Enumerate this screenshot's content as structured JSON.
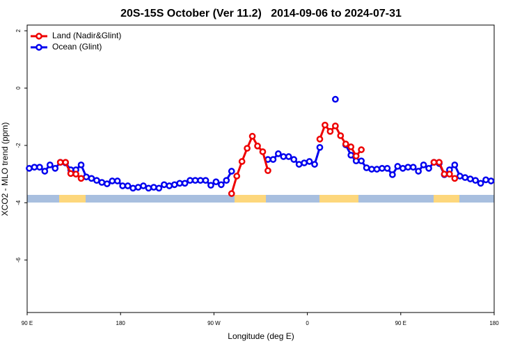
{
  "chart_data": {
    "type": "line",
    "title": "20S-15S October (Ver 11.2)   2014-09-06 to 2024-07-31",
    "x_label": "Longitude (deg E)",
    "y_label": "XCO2 - MLO trend (ppm)",
    "xlim": [
      90,
      540
    ],
    "ylim": [
      -7.83,
      2.2
    ],
    "xticks": [
      {
        "value": 90,
        "label": "90 E"
      },
      180,
      {
        "value": 270,
        "label": "90 W"
      },
      {
        "value": 360,
        "label": "0"
      },
      {
        "value": 450,
        "label": "90 E"
      },
      {
        "value": 540,
        "label": "180"
      }
    ],
    "yticks": [
      2,
      0,
      -2,
      -4,
      -6
    ],
    "legend": "top-left",
    "x": [
      92,
      97,
      102,
      107,
      112,
      117,
      122,
      127,
      132,
      137,
      142,
      147,
      152,
      157,
      162,
      167,
      172,
      177,
      182,
      187,
      192,
      197,
      202,
      207,
      212,
      217,
      222,
      227,
      232,
      237,
      242,
      247,
      252,
      257,
      262,
      267,
      272,
      277,
      282,
      287,
      292,
      297,
      302,
      307,
      312,
      317,
      322,
      327,
      332,
      337,
      342,
      347,
      352,
      357,
      362,
      367,
      372,
      377,
      382,
      387,
      392,
      397,
      402,
      407,
      412,
      417,
      422,
      427,
      432,
      437,
      442,
      447,
      452,
      457,
      462,
      467,
      472,
      477,
      482,
      487,
      492,
      497,
      502,
      507,
      512,
      517,
      522,
      527,
      532,
      537
    ],
    "series": [
      {
        "name": "Ocean (Glint)",
        "color": "#0000ee",
        "values": [
          -2.8,
          -2.76,
          -2.76,
          -2.9,
          -2.68,
          -2.8,
          -2.59,
          -2.61,
          -2.85,
          -2.85,
          -2.68,
          -3.1,
          -3.15,
          -3.22,
          -3.29,
          -3.34,
          -3.24,
          -3.24,
          -3.41,
          -3.41,
          -3.49,
          -3.46,
          -3.41,
          -3.49,
          -3.46,
          -3.49,
          -3.37,
          -3.41,
          -3.37,
          -3.32,
          -3.32,
          -3.22,
          -3.22,
          -3.22,
          -3.22,
          -3.39,
          -3.27,
          -3.37,
          -3.22,
          -2.9,
          null,
          null,
          null,
          null,
          null,
          null,
          -2.49,
          -2.49,
          -2.29,
          -2.39,
          -2.39,
          -2.49,
          -2.66,
          -2.61,
          -2.56,
          -2.66,
          -2.07,
          null,
          null,
          -0.39,
          null,
          -1.98,
          -2.34,
          -2.54,
          -2.54,
          -2.78,
          -2.83,
          -2.83,
          -2.8,
          -2.8,
          -3.02,
          -2.73,
          -2.8,
          -2.76,
          -2.76,
          -2.9,
          -2.68,
          -2.8,
          -2.59,
          -2.63,
          -3.02,
          -2.85,
          -2.68,
          -3.07,
          -3.12,
          -3.17,
          -3.22,
          -3.32,
          -3.2,
          -3.24
        ]
      },
      {
        "name": "Land (Nadir&Glint)",
        "color": "#ee0000",
        "values": [
          null,
          null,
          null,
          null,
          null,
          null,
          -2.59,
          -2.59,
          -2.98,
          -3.0,
          -3.15,
          null,
          null,
          null,
          null,
          null,
          null,
          null,
          null,
          null,
          null,
          null,
          null,
          null,
          null,
          null,
          null,
          null,
          null,
          null,
          null,
          null,
          null,
          null,
          null,
          null,
          null,
          null,
          null,
          -3.68,
          -3.07,
          -2.56,
          -2.1,
          -1.68,
          -2.02,
          -2.22,
          -2.88,
          null,
          null,
          null,
          null,
          null,
          null,
          null,
          null,
          null,
          -1.78,
          -1.29,
          -1.51,
          -1.32,
          -1.66,
          -1.95,
          -2.05,
          -2.37,
          -2.15,
          null,
          null,
          null,
          null,
          null,
          null,
          null,
          null,
          null,
          null,
          null,
          null,
          null,
          -2.59,
          -2.59,
          -3.0,
          -3.0,
          -3.15,
          null,
          null,
          null,
          null,
          null,
          null,
          null
        ]
      }
    ]
  }
}
